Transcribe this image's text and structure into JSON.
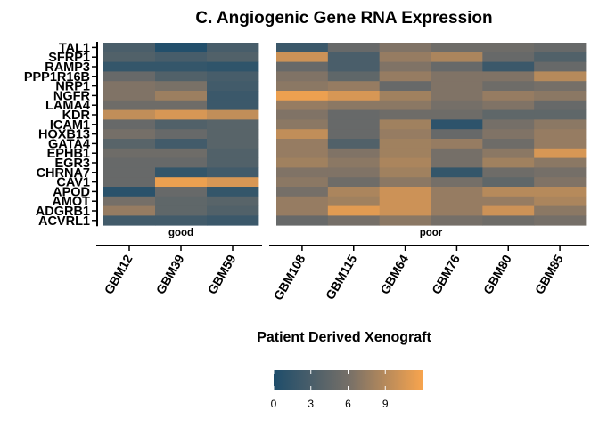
{
  "chart_data": {
    "type": "heatmap",
    "title": "C. Angiogenic Gene RNA Expression",
    "xlabel": "Patient Derived Xenograft",
    "ylabel": "",
    "genes": [
      "TAL1",
      "SFRP1",
      "RAMP3",
      "PPP1R16B",
      "NRP1",
      "NGFR",
      "LAMA4",
      "KDR",
      "ICAM1",
      "HOXB13",
      "GATA4",
      "EPHB1",
      "EGR3",
      "CHRNA7",
      "CAV1",
      "APOD",
      "AMOT",
      "ADGRB1",
      "ACVRL1"
    ],
    "panels": [
      {
        "name": "good",
        "samples": [
          "GBM12",
          "GBM39",
          "GBM59"
        ],
        "values": [
          [
            3.0,
            0.3,
            2.8
          ],
          [
            3.5,
            2.8,
            3.5
          ],
          [
            1.5,
            1.5,
            1.2
          ],
          [
            5.0,
            3.5,
            2.8
          ],
          [
            6.5,
            6.2,
            2.5
          ],
          [
            6.5,
            7.8,
            2.0
          ],
          [
            5.5,
            5.5,
            2.0
          ],
          [
            9.5,
            10.5,
            9.5
          ],
          [
            5.0,
            3.5,
            4.0
          ],
          [
            6.0,
            5.0,
            4.0
          ],
          [
            4.0,
            2.5,
            4.0
          ],
          [
            5.5,
            5.5,
            3.5
          ],
          [
            5.0,
            5.0,
            3.5
          ],
          [
            5.0,
            1.5,
            2.5
          ],
          [
            5.0,
            11.5,
            10.5
          ],
          [
            0.8,
            5.0,
            1.5
          ],
          [
            6.0,
            4.5,
            4.0
          ],
          [
            7.5,
            4.5,
            3.5
          ],
          [
            2.5,
            2.5,
            2.0
          ]
        ]
      },
      {
        "name": "poor",
        "samples": [
          "GBM108",
          "GBM115",
          "GBM64",
          "GBM76",
          "GBM80",
          "GBM85"
        ],
        "values": [
          [
            2.0,
            5.0,
            6.5,
            5.5,
            5.5,
            5.0
          ],
          [
            10.0,
            3.0,
            7.5,
            8.5,
            5.0,
            3.5
          ],
          [
            5.0,
            3.0,
            6.5,
            5.0,
            2.0,
            5.0
          ],
          [
            6.5,
            4.5,
            7.5,
            6.5,
            6.5,
            9.0
          ],
          [
            7.0,
            7.5,
            5.0,
            6.5,
            5.5,
            6.0
          ],
          [
            11.5,
            10.5,
            8.0,
            6.5,
            7.5,
            7.0
          ],
          [
            7.5,
            7.0,
            7.0,
            6.0,
            6.5,
            5.0
          ],
          [
            6.5,
            5.0,
            5.5,
            5.5,
            4.5,
            4.5
          ],
          [
            7.0,
            5.0,
            8.0,
            1.0,
            6.0,
            7.0
          ],
          [
            9.5,
            5.0,
            7.5,
            5.0,
            6.5,
            7.5
          ],
          [
            7.5,
            3.5,
            8.0,
            7.5,
            5.5,
            7.5
          ],
          [
            7.5,
            6.5,
            8.0,
            6.0,
            7.0,
            10.5
          ],
          [
            8.0,
            7.0,
            8.5,
            6.0,
            8.0,
            7.0
          ],
          [
            6.5,
            6.5,
            8.0,
            1.5,
            5.5,
            6.0
          ],
          [
            7.0,
            5.5,
            7.0,
            6.0,
            4.5,
            6.5
          ],
          [
            6.0,
            8.5,
            10.0,
            7.5,
            9.0,
            9.0
          ],
          [
            7.5,
            8.0,
            10.0,
            7.5,
            7.5,
            8.5
          ],
          [
            7.5,
            11.0,
            10.0,
            7.5,
            10.0,
            7.0
          ],
          [
            5.0,
            6.0,
            7.0,
            6.0,
            5.5,
            6.0
          ]
        ]
      }
    ],
    "legend": {
      "ticks": [
        0,
        3,
        6,
        9
      ],
      "range": [
        0,
        12
      ],
      "low_color": "#1e4d6b",
      "mid_color": "#756f68",
      "high_color": "#f7a44e",
      "placement": "bottom"
    }
  }
}
